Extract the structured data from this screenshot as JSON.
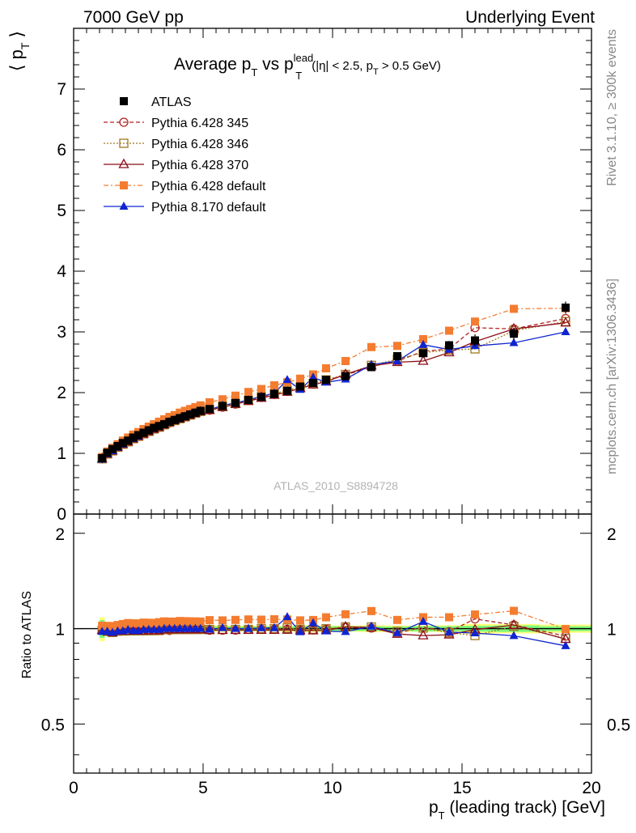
{
  "header": {
    "left": "7000 GeV pp",
    "right": "Underlying Event"
  },
  "side_labels": {
    "top": "Rivet 3.1.10, ≥ 300k events",
    "bottom": "mcplots.cern.ch [arXiv:1306.3436]"
  },
  "chart_data": {
    "type": "line",
    "title_parts": {
      "main": "Average p",
      "sub1": "T",
      "vs": " vs p",
      "sup": "lead",
      "sub2": "T",
      "cut1": "(|η| < 2.5, p",
      "cut_sub": "T",
      "cut2": " > 0.5 GeV)"
    },
    "watermark": "ATLAS_2010_S8894728",
    "xlabel": {
      "main": "p",
      "sub": "T",
      "rest": " (leading track) [GeV]"
    },
    "ylabel": {
      "left": "⟨ p",
      "sub": "T",
      "right": "⟩"
    },
    "ratio_ylabel": "Ratio to ATLAS",
    "xlim": [
      0,
      20
    ],
    "ylim": [
      0,
      8
    ],
    "ratio_ylim": [
      0.35,
      2.3
    ],
    "x_ticks": [
      "0",
      "5",
      "10",
      "15",
      "20"
    ],
    "y_ticks": [
      "0",
      "1",
      "2",
      "3",
      "4",
      "5",
      "6",
      "7"
    ],
    "ratio_ticks": [
      "0.5",
      "1",
      "2"
    ],
    "x": [
      1.1,
      1.3,
      1.5,
      1.7,
      1.9,
      2.1,
      2.3,
      2.5,
      2.7,
      2.9,
      3.1,
      3.3,
      3.5,
      3.7,
      3.9,
      4.1,
      4.3,
      4.5,
      4.7,
      4.9,
      5.25,
      5.75,
      6.25,
      6.75,
      7.25,
      7.75,
      8.25,
      8.75,
      9.25,
      9.75,
      10.5,
      11.5,
      12.5,
      13.5,
      14.5,
      15.5,
      17.0,
      19.0
    ],
    "atlas": {
      "name": "ATLAS",
      "values": [
        0.92,
        1.01,
        1.07,
        1.12,
        1.17,
        1.21,
        1.26,
        1.3,
        1.34,
        1.38,
        1.42,
        1.45,
        1.48,
        1.52,
        1.55,
        1.58,
        1.61,
        1.64,
        1.67,
        1.7,
        1.73,
        1.78,
        1.83,
        1.88,
        1.93,
        1.98,
        2.03,
        2.1,
        2.16,
        2.21,
        2.27,
        2.42,
        2.6,
        2.65,
        2.78,
        2.86,
        2.97,
        3.4
      ],
      "band_stat": [
        0.06,
        0.04,
        0.03,
        0.03,
        0.03,
        0.03,
        0.03,
        0.03,
        0.03,
        0.03,
        0.03,
        0.03,
        0.03,
        0.03,
        0.03,
        0.03,
        0.03,
        0.03,
        0.03,
        0.03,
        0.03,
        0.03,
        0.03,
        0.03,
        0.03,
        0.03,
        0.03,
        0.04,
        0.04,
        0.04,
        0.04,
        0.04,
        0.04,
        0.05,
        0.05,
        0.06,
        0.07,
        0.06
      ],
      "band_total": [
        0.08,
        0.05,
        0.04,
        0.04,
        0.04,
        0.04,
        0.04,
        0.04,
        0.04,
        0.04,
        0.04,
        0.04,
        0.04,
        0.04,
        0.04,
        0.04,
        0.04,
        0.04,
        0.04,
        0.04,
        0.04,
        0.04,
        0.04,
        0.04,
        0.04,
        0.04,
        0.04,
        0.05,
        0.05,
        0.05,
        0.05,
        0.06,
        0.06,
        0.06,
        0.07,
        0.1,
        0.1,
        0.1
      ]
    },
    "series": [
      {
        "name": "Pythia 6.428 345",
        "color": "#b22222",
        "marker": "open-circle",
        "dash": "5,3",
        "values": [
          0.91,
          0.99,
          1.04,
          1.1,
          1.15,
          1.19,
          1.24,
          1.28,
          1.32,
          1.36,
          1.4,
          1.43,
          1.47,
          1.5,
          1.54,
          1.57,
          1.6,
          1.63,
          1.66,
          1.69,
          1.71,
          1.76,
          1.81,
          1.87,
          1.92,
          1.97,
          2.02,
          2.08,
          2.14,
          2.2,
          2.29,
          2.43,
          2.52,
          2.68,
          2.72,
          3.07,
          3.05,
          3.22
        ]
      },
      {
        "name": "Pythia 6.428 346",
        "color": "#a0781e",
        "marker": "open-square",
        "dash": "2,2",
        "values": [
          0.91,
          0.99,
          1.04,
          1.1,
          1.15,
          1.19,
          1.24,
          1.28,
          1.32,
          1.36,
          1.4,
          1.43,
          1.47,
          1.51,
          1.54,
          1.57,
          1.6,
          1.63,
          1.66,
          1.69,
          1.72,
          1.77,
          1.82,
          1.87,
          1.93,
          1.98,
          2.04,
          2.09,
          2.15,
          2.21,
          2.3,
          2.45,
          2.55,
          2.66,
          2.7,
          2.72,
          3.02,
          3.17
        ]
      },
      {
        "name": "Pythia 6.428 370",
        "color": "#8b0d1a",
        "marker": "open-triangle",
        "dash": "",
        "values": [
          0.91,
          0.99,
          1.04,
          1.1,
          1.15,
          1.19,
          1.24,
          1.28,
          1.32,
          1.36,
          1.4,
          1.43,
          1.47,
          1.51,
          1.54,
          1.57,
          1.6,
          1.63,
          1.66,
          1.69,
          1.71,
          1.76,
          1.81,
          1.86,
          1.91,
          1.96,
          2.01,
          2.07,
          2.13,
          2.18,
          2.3,
          2.44,
          2.5,
          2.52,
          2.66,
          2.84,
          3.05,
          3.15
        ]
      },
      {
        "name": "Pythia 6.428 default",
        "color": "#f47c30",
        "marker": "filled-square",
        "dash": "6,3,2,3",
        "values": [
          0.94,
          1.03,
          1.09,
          1.15,
          1.21,
          1.26,
          1.31,
          1.35,
          1.4,
          1.44,
          1.48,
          1.52,
          1.56,
          1.6,
          1.63,
          1.67,
          1.7,
          1.73,
          1.76,
          1.79,
          1.84,
          1.89,
          1.95,
          2.01,
          2.06,
          2.12,
          2.17,
          2.23,
          2.3,
          2.4,
          2.52,
          2.75,
          2.77,
          2.88,
          3.02,
          3.17,
          3.38,
          3.39
        ]
      },
      {
        "name": "Pythia 8.170 default",
        "color": "#0f24d0",
        "marker": "filled-triangle",
        "dash": "",
        "values": [
          0.9,
          0.99,
          1.04,
          1.1,
          1.15,
          1.2,
          1.24,
          1.28,
          1.33,
          1.37,
          1.41,
          1.44,
          1.48,
          1.52,
          1.55,
          1.58,
          1.61,
          1.64,
          1.67,
          1.7,
          1.72,
          1.79,
          1.83,
          1.88,
          1.94,
          1.99,
          2.21,
          2.05,
          2.25,
          2.17,
          2.22,
          2.46,
          2.52,
          2.79,
          2.71,
          2.77,
          2.82,
          3.0
        ]
      }
    ]
  }
}
